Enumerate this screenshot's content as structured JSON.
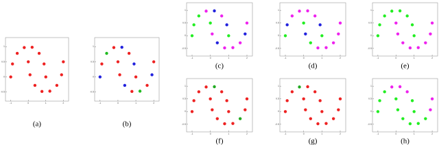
{
  "chart_data": [
    {
      "type": "scatter",
      "caption": "(a)",
      "xlim": [
        -1.3,
        2.3
      ],
      "ylim": [
        -0.8,
        1.3
      ],
      "xticks": [
        -1,
        0,
        1,
        2
      ],
      "yticks": [
        -0.5,
        0,
        0.5,
        1
      ],
      "series": [
        {
          "color": "#ee2222",
          "x": [
            1,
            0.9,
            0.62,
            0.22,
            -0.23,
            -0.63,
            -0.9,
            -1,
            0,
            0.1,
            0.38,
            0.78,
            1.23,
            1.63,
            1.9,
            2
          ],
          "y": [
            0,
            0.43,
            0.78,
            0.98,
            0.97,
            0.78,
            0.43,
            0,
            0.5,
            0.07,
            -0.28,
            -0.48,
            -0.47,
            -0.28,
            0.07,
            0.5
          ]
        }
      ]
    },
    {
      "type": "scatter",
      "caption": "(b)",
      "xlim": [
        -1.3,
        2.3
      ],
      "ylim": [
        -0.8,
        1.3
      ],
      "xticks": [
        -1,
        0,
        1,
        2
      ],
      "yticks": [
        -0.5,
        0,
        0.5,
        1
      ],
      "series": [
        {
          "color": "#ee2222",
          "x": [
            1,
            0.62,
            -0.23,
            -0.9,
            0.1,
            0.78,
            1.63,
            2,
            0
          ],
          "y": [
            0,
            0.78,
            0.97,
            0.43,
            0.07,
            -0.48,
            -0.28,
            0.5,
            0.5
          ]
        },
        {
          "color": "#2222dd",
          "x": [
            0.9,
            0.22,
            -1,
            0.38,
            1.9
          ],
          "y": [
            0.43,
            0.98,
            0,
            -0.28,
            0.07
          ]
        },
        {
          "color": "#22bb22",
          "x": [
            -0.63,
            1.23
          ],
          "y": [
            0.78,
            -0.47
          ]
        }
      ]
    },
    {
      "type": "scatter",
      "caption": "(c)",
      "xlim": [
        -1.3,
        2.3
      ],
      "ylim": [
        -0.8,
        1.3
      ],
      "xticks": [
        -1,
        0,
        1,
        2
      ],
      "yticks": [
        -0.5,
        0,
        0.5,
        1
      ],
      "series": [
        {
          "color": "#22ee22",
          "x": [
            1,
            -0.63,
            -0.9,
            -1,
            0
          ],
          "y": [
            0,
            0.78,
            0.43,
            0,
            0.5
          ]
        },
        {
          "color": "#2222dd",
          "x": [
            0.9,
            0.22,
            0.38,
            1.9
          ],
          "y": [
            0.43,
            0.98,
            -0.28,
            0.07
          ]
        },
        {
          "color": "#ee22ee",
          "x": [
            0.62,
            -0.23,
            0.1,
            0.78,
            1.23,
            1.63,
            2
          ],
          "y": [
            0.78,
            0.97,
            0.07,
            -0.48,
            -0.47,
            -0.28,
            0.5
          ]
        }
      ]
    },
    {
      "type": "scatter",
      "caption": "(d)",
      "xlim": [
        -1.3,
        2.3
      ],
      "ylim": [
        -0.8,
        1.3
      ],
      "xticks": [
        -1,
        0,
        1,
        2
      ],
      "yticks": [
        -0.5,
        0,
        0.5,
        1
      ],
      "series": [
        {
          "color": "#ee22ee",
          "x": [
            0.62,
            0.22,
            -0.23,
            -0.63,
            0.78,
            1.23,
            1.63,
            1.9,
            2
          ],
          "y": [
            0.78,
            0.98,
            0.97,
            0.78,
            -0.48,
            -0.47,
            -0.28,
            0.07,
            0.5
          ]
        },
        {
          "color": "#2222dd",
          "x": [
            0.9,
            -0.9,
            0.1
          ],
          "y": [
            0.43,
            0.43,
            0.07
          ]
        },
        {
          "color": "#22ee22",
          "x": [
            1,
            -1,
            0,
            0.38
          ],
          "y": [
            0,
            0,
            0.5,
            -0.28
          ]
        }
      ]
    },
    {
      "type": "scatter",
      "caption": "(e)",
      "xlim": [
        -1.3,
        2.3
      ],
      "ylim": [
        -0.8,
        1.3
      ],
      "xticks": [
        -1,
        0,
        1,
        2
      ],
      "yticks": [
        -0.5,
        0,
        0.5,
        1
      ],
      "series": [
        {
          "color": "#22ee22",
          "x": [
            1,
            0.9,
            0.62,
            0.22,
            -0.23,
            -0.63,
            -0.9,
            -1
          ],
          "y": [
            0,
            0.43,
            0.78,
            0.98,
            0.97,
            0.78,
            0.43,
            0
          ]
        },
        {
          "color": "#ee22ee",
          "x": [
            0,
            0.1,
            0.38,
            0.78,
            1.23,
            1.63,
            1.9,
            2
          ],
          "y": [
            0.5,
            0.07,
            -0.28,
            -0.48,
            -0.47,
            -0.28,
            0.07,
            0.5
          ]
        }
      ]
    },
    {
      "type": "scatter",
      "caption": "(f)",
      "xlim": [
        -1.3,
        2.3
      ],
      "ylim": [
        -0.8,
        1.3
      ],
      "xticks": [
        -1,
        0,
        1,
        2
      ],
      "yticks": [
        -0.5,
        0,
        0.5,
        1
      ],
      "series": [
        {
          "color": "#ee2222",
          "x": [
            1,
            0.9,
            0.62,
            -0.23,
            -0.63,
            -0.9,
            -1,
            0,
            0.1,
            0.38,
            0.78,
            1.23,
            1.9,
            2
          ],
          "y": [
            0,
            0.43,
            0.78,
            0.97,
            0.78,
            0.43,
            0,
            0.5,
            0.07,
            -0.28,
            -0.48,
            -0.47,
            0.07,
            0.5
          ]
        },
        {
          "color": "#22aa22",
          "x": [
            0.22,
            1.63
          ],
          "y": [
            0.98,
            -0.28
          ]
        }
      ]
    },
    {
      "type": "scatter",
      "caption": "(g)",
      "xlim": [
        -1.3,
        2.3
      ],
      "ylim": [
        -0.8,
        1.3
      ],
      "xticks": [
        -1,
        0,
        1,
        2
      ],
      "yticks": [
        -0.5,
        0,
        0.5,
        1
      ],
      "series": [
        {
          "color": "#ee2222",
          "x": [
            1,
            0.9,
            0.62,
            0.22,
            -0.63,
            -0.9,
            -1,
            0,
            0.1,
            0.38,
            0.78,
            1.23,
            1.63,
            1.9,
            2
          ],
          "y": [
            0,
            0.43,
            0.78,
            0.98,
            0.78,
            0.43,
            0,
            0.5,
            0.07,
            -0.28,
            -0.48,
            -0.47,
            -0.28,
            0.07,
            0.5
          ]
        },
        {
          "color": "#22aa22",
          "x": [
            -0.23
          ],
          "y": [
            0.97
          ]
        }
      ]
    },
    {
      "type": "scatter",
      "caption": "(h)",
      "xlim": [
        -1.3,
        2.3
      ],
      "ylim": [
        -0.8,
        1.3
      ],
      "xticks": [
        -1,
        0,
        1,
        2
      ],
      "yticks": [
        -0.5,
        0,
        0.5,
        1
      ],
      "series": [
        {
          "color": "#ee22ee",
          "x": [
            0.62,
            0.22,
            -0.23,
            1.9,
            2
          ],
          "y": [
            0.78,
            0.98,
            0.97,
            0.07,
            0.5
          ]
        },
        {
          "color": "#22ee22",
          "x": [
            1,
            0.9,
            -0.63,
            -0.9,
            -1,
            0,
            0.1,
            0.38,
            0.78,
            1.23,
            1.63
          ],
          "y": [
            0,
            0.43,
            0.78,
            0.43,
            0,
            0.5,
            0.07,
            -0.28,
            -0.48,
            -0.47,
            -0.28
          ]
        }
      ]
    }
  ]
}
